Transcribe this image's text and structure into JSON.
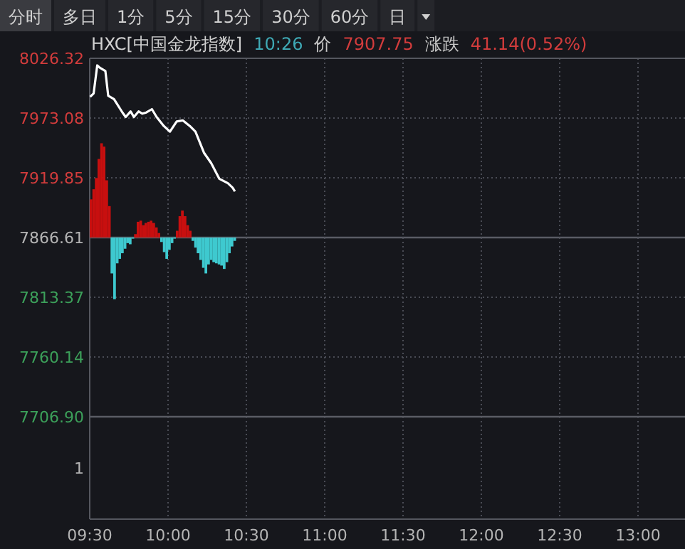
{
  "chart_data": {
    "type": "line",
    "title": "HXC[中国金龙指数]",
    "annotations": [
      "分时",
      "多日",
      "1分",
      "5分",
      "15分",
      "30分",
      "60分",
      "日",
      "10:26",
      "价",
      "7907.75",
      "涨跌",
      "41.14(0.52%)",
      "1"
    ],
    "xlim": [
      9.5,
      13.3
    ],
    "xticks": [
      {
        "value": 9.5,
        "label": "09:30"
      },
      {
        "value": 10,
        "label": "10:00"
      },
      {
        "value": 10.5,
        "label": "10:30"
      },
      {
        "value": 11,
        "label": "11:00"
      },
      {
        "value": 11.5,
        "label": "11:30"
      },
      {
        "value": 12,
        "label": "12:00"
      },
      {
        "value": 12.5,
        "label": "12:30"
      },
      {
        "value": 13,
        "label": "13:00"
      }
    ],
    "ylim": [
      7615.6,
      8026.32
    ],
    "yticks": [
      8026.32,
      7973.08,
      7919.85,
      7866.61,
      7813.37,
      7760.14,
      {
        "value": 7706.9,
        "label": "7706.90"
      }
    ],
    "grid": true,
    "series": [
      {
        "color": "#ffffff",
        "x": [
          9.503,
          9.525,
          9.548,
          9.564,
          9.6,
          9.618,
          9.655,
          9.709,
          9.73,
          9.761,
          9.782,
          9.812,
          9.836,
          9.861,
          9.897,
          9.927,
          9.973,
          10.012,
          10.055,
          10.094,
          10.139,
          10.175,
          10.23,
          10.275,
          10.327,
          10.382,
          10.412,
          10.427
        ],
        "values": [
          7992,
          7995,
          8020,
          8018,
          8015,
          7993,
          7990,
          7978,
          7974,
          7979,
          7974,
          7979,
          7977,
          7978,
          7981,
          7974,
          7966,
          7961,
          7970,
          7971,
          7966,
          7961,
          7942,
          7933,
          7919,
          7915,
          7911,
          7907.75
        ]
      },
      {
        "type": "bar",
        "x": [
          9.5,
          9.517,
          9.533,
          9.55,
          9.567,
          9.583,
          9.6,
          9.617,
          9.633,
          9.65,
          9.667,
          9.683,
          9.7,
          9.717,
          9.733,
          9.75,
          9.767,
          9.783,
          9.8,
          9.817,
          9.833,
          9.85,
          9.867,
          9.883,
          9.9,
          9.917,
          9.933,
          9.95,
          9.967,
          9.983,
          10.0,
          10.017,
          10.033,
          10.05,
          10.067,
          10.083,
          10.1,
          10.117,
          10.133,
          10.15,
          10.167,
          10.183,
          10.2,
          10.217,
          10.233,
          10.25,
          10.267,
          10.283,
          10.3,
          10.317,
          10.333,
          10.35,
          10.367,
          10.383,
          10.4,
          10.417
        ],
        "base": [
          7866.61,
          7866.61,
          7866.61,
          7866.61,
          7866.61,
          7866.61,
          7866.61,
          7866.61,
          7866.61,
          7866.61,
          7866.61,
          7866.61,
          7866.61,
          7866.61,
          7866.61,
          7866.61,
          7866.61,
          7866.61,
          7866.61,
          7866.61,
          7866.61,
          7866.61,
          7866.61,
          7866.61,
          7866.61,
          7866.61,
          7866.61,
          7866.61,
          7866.61,
          7866.61,
          7866.61,
          7866.61,
          7866.61,
          7866.61,
          7866.61,
          7866.61,
          7866.61,
          7866.61,
          7866.61,
          7866.61,
          7866.61,
          7866.61,
          7866.61,
          7866.61,
          7866.61,
          7866.61,
          7866.61,
          7866.61,
          7866.61,
          7866.61,
          7866.61,
          7866.61,
          7866.61,
          7866.61,
          7866.61,
          7866.61
        ],
        "values": [
          34,
          43,
          53,
          70,
          84,
          81,
          51,
          28,
          -32,
          -55,
          -23,
          -19,
          -14,
          -10,
          -5,
          -6,
          -1,
          3,
          14,
          15,
          11,
          13,
          14,
          15,
          13,
          9,
          4,
          -4,
          -13,
          -19,
          -11,
          -5,
          -1,
          6,
          19,
          24,
          19,
          11,
          6,
          -3,
          -9,
          -14,
          -20,
          -27,
          -32,
          -24,
          -20,
          -22,
          -23,
          -24,
          -25,
          -28,
          -22,
          -14,
          -8,
          -3
        ],
        "colors": [
          "#c80f0f",
          "#c80f0f",
          "#c80f0f",
          "#c80f0f",
          "#c80f0f",
          "#c80f0f",
          "#c80f0f",
          "#c80f0f",
          "#3ec9cf",
          "#3ec9cf",
          "#3ec9cf",
          "#3ec9cf",
          "#3ec9cf",
          "#3ec9cf",
          "#3ec9cf",
          "#3ec9cf",
          "#3ec9cf",
          "#c80f0f",
          "#c80f0f",
          "#c80f0f",
          "#c80f0f",
          "#c80f0f",
          "#c80f0f",
          "#c80f0f",
          "#c80f0f",
          "#c80f0f",
          "#c80f0f",
          "#3ec9cf",
          "#3ec9cf",
          "#3ec9cf",
          "#3ec9cf",
          "#3ec9cf",
          "#3ec9cf",
          "#c80f0f",
          "#c80f0f",
          "#c80f0f",
          "#c80f0f",
          "#c80f0f",
          "#c80f0f",
          "#3ec9cf",
          "#3ec9cf",
          "#3ec9cf",
          "#3ec9cf",
          "#3ec9cf",
          "#3ec9cf",
          "#3ec9cf",
          "#3ec9cf",
          "#3ec9cf",
          "#3ec9cf",
          "#3ec9cf",
          "#3ec9cf",
          "#3ec9cf",
          "#3ec9cf",
          "#3ec9cf",
          "#3ec9cf",
          "#3ec9cf"
        ]
      }
    ]
  }
}
